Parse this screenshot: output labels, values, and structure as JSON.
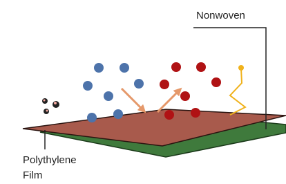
{
  "labels": {
    "nonwoven": "Nonwoven",
    "film": [
      "Polythylene",
      "Film"
    ]
  }
}
